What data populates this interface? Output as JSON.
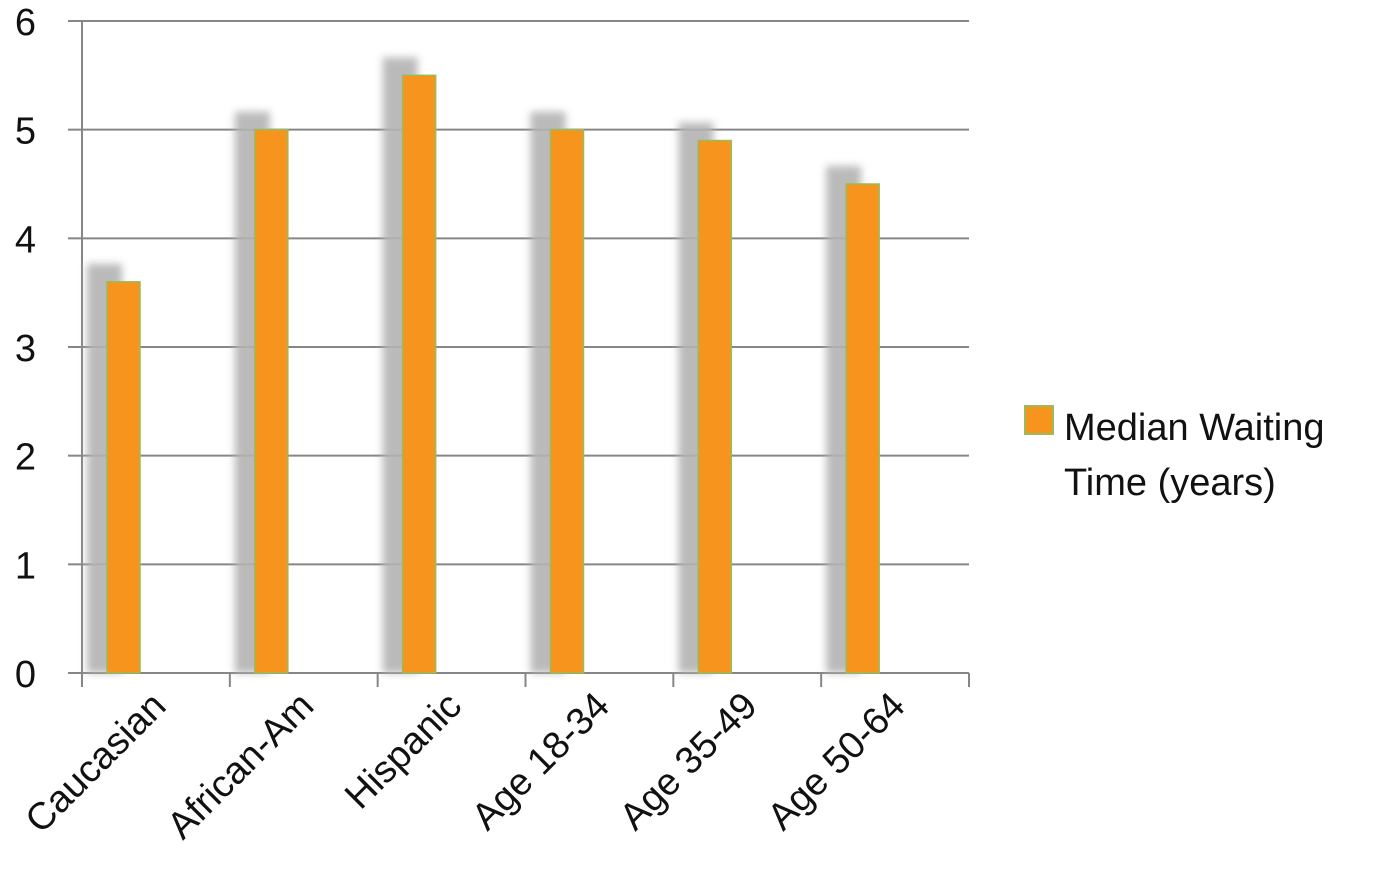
{
  "chart_data": {
    "type": "bar",
    "categories": [
      "Caucasian",
      "African-Am",
      "Hispanic",
      "Age 18-34",
      "Age 35-49",
      "Age 50-64"
    ],
    "series": [
      {
        "name": "Median Waiting Time (years)",
        "values": [
          3.6,
          5.0,
          5.5,
          5.0,
          4.9,
          4.5
        ]
      }
    ],
    "ylim": [
      0,
      6
    ],
    "yticks": [
      "0",
      "1",
      "2",
      "3",
      "4",
      "5",
      "6"
    ],
    "grid": true,
    "legend_position": "right",
    "legend_lines": [
      "Median Waiting",
      "Time (years)"
    ],
    "bar_color": "#f7941d",
    "bar_edge_color": "#9bbb59",
    "shadow_color": "#b3b3b3",
    "axis_color": "#868686"
  }
}
